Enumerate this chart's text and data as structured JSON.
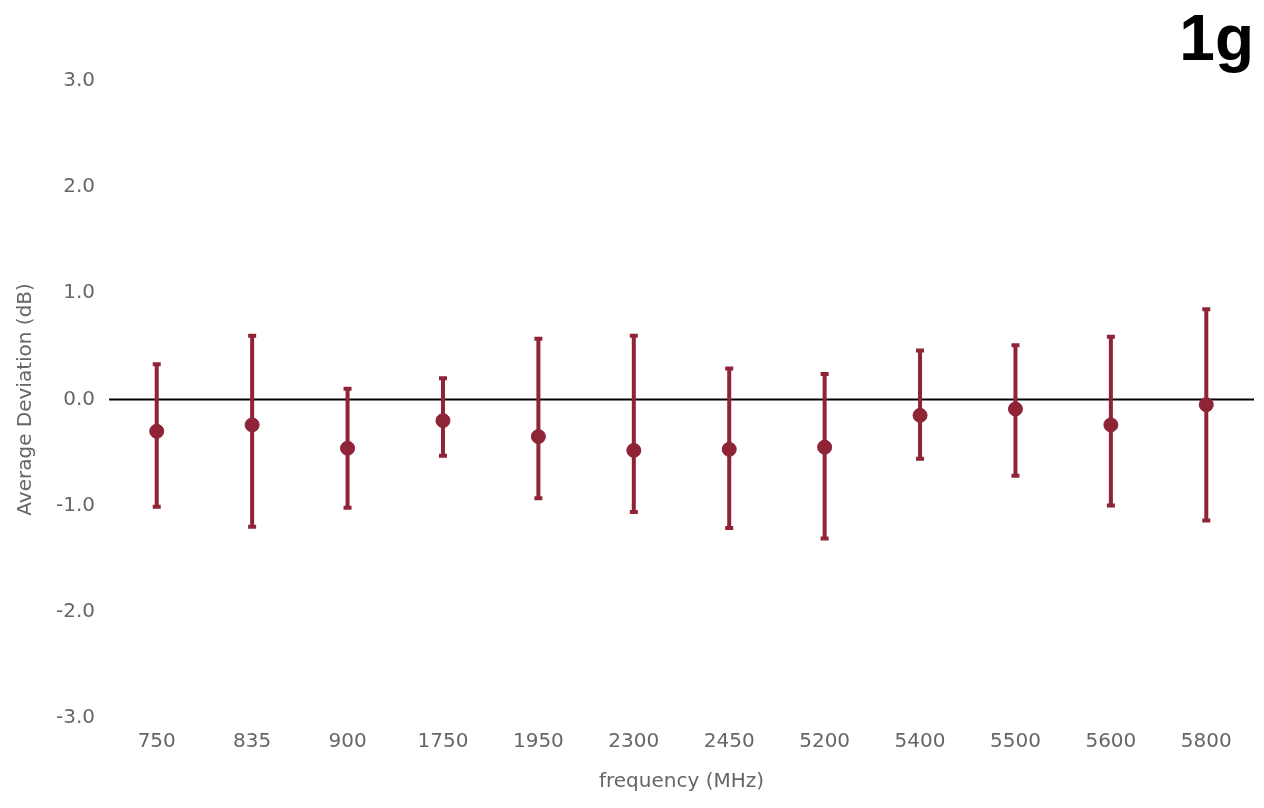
{
  "chart_data": {
    "type": "scatter",
    "title": "1g",
    "xlabel": "frequency (MHz)",
    "ylabel": "Average Deviation (dB)",
    "categories": [
      "750",
      "835",
      "900",
      "1750",
      "1950",
      "2300",
      "2450",
      "5200",
      "5400",
      "5500",
      "5600",
      "5800"
    ],
    "series": [
      {
        "color": "#8e2436",
        "values": [
          -0.3,
          -0.24,
          -0.46,
          -0.2,
          -0.35,
          -0.48,
          -0.47,
          -0.45,
          -0.15,
          -0.09,
          -0.24,
          -0.05
        ],
        "errors": [
          [
            -1.01,
            0.33
          ],
          [
            -1.2,
            0.6
          ],
          [
            -1.02,
            0.1
          ],
          [
            -0.53,
            0.2
          ],
          [
            -0.93,
            0.57
          ],
          [
            -1.06,
            0.6
          ],
          [
            -1.21,
            0.29
          ],
          [
            -1.31,
            0.24
          ],
          [
            -0.56,
            0.46
          ],
          [
            -0.72,
            0.51
          ],
          [
            -1.0,
            0.59
          ],
          [
            -1.14,
            0.85
          ]
        ]
      }
    ],
    "ylim": [
      -3,
      3
    ],
    "yticks": [
      {
        "value": -3,
        "label": "-3.0"
      },
      {
        "value": -2,
        "label": "-2.0"
      },
      {
        "value": -1,
        "label": "-1.0"
      },
      {
        "value": 0,
        "label": "0.0"
      },
      {
        "value": 1,
        "label": "1.0"
      },
      {
        "value": 2,
        "label": "2.0"
      },
      {
        "value": 3,
        "label": "3.0"
      }
    ],
    "ref_lines": [
      {
        "axis": "y",
        "value": 0,
        "color": "#000000"
      }
    ],
    "marker": "circle",
    "grid": false,
    "legend": false
  }
}
